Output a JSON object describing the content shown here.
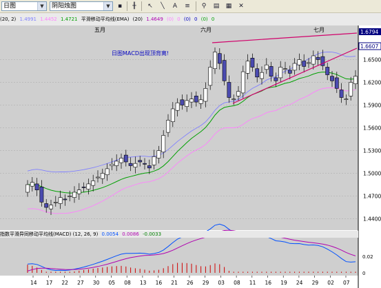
{
  "toolbar": {
    "period_combo": "日图",
    "chart_type_combo": "阴阳烛图",
    "icons": [
      "save-icon",
      "bar-chart-icon",
      "cursor-icon",
      "trendline-icon",
      "text-icon",
      "fibonacci-icon",
      "zoom-icon",
      "properties-icon",
      "grid-icon",
      "close-icon"
    ]
  },
  "indicators": {
    "bollinger": {
      "params": "(20, 2)",
      "v1": "1.4991",
      "v2": "1.4452",
      "v3": "1.4721"
    },
    "ema": {
      "label": "平滑移动平均线(EMA)",
      "period": "(20)",
      "value": "1.4649",
      "z1": "(0)",
      "z1v": "0",
      "z2": "(0)",
      "z2v": "0",
      "z3": "(0)",
      "z3v": "0"
    }
  },
  "months": {
    "may": "五月",
    "june": "六月",
    "july": "七月"
  },
  "annotation": "日图MACD出现顶背离!",
  "price_axis": {
    "ticks": [
      "1.6500",
      "1.6200",
      "1.5900",
      "1.5600",
      "1.5300",
      "1.5000",
      "1.4700",
      "1.4400"
    ],
    "tag_top": "1.6794",
    "tag_mid": "1.6607",
    "tag_color": "#000080"
  },
  "date_axis": [
    "14",
    "17",
    "22",
    "27",
    "30",
    "05",
    "08",
    "13",
    "16",
    "21",
    "26",
    "29",
    "03",
    "08",
    "11",
    "16",
    "19",
    "24",
    "29",
    "02",
    "07"
  ],
  "macd": {
    "label": "指数平滑异同移动平均线(MACD) (12, 26, 9)",
    "v1": "0.0054",
    "v2": "0.0086",
    "v3": "-0.0033",
    "ticks": [
      "0.02",
      "0"
    ]
  },
  "colors": {
    "bull": "#ffffff",
    "bear": "#4b4bb0",
    "ema": "#00a000",
    "boll": "#8080ff",
    "pink": "#ff80ff",
    "trend": "#d0006a",
    "signal": "#b000b0",
    "macd": "#0050ff"
  }
}
